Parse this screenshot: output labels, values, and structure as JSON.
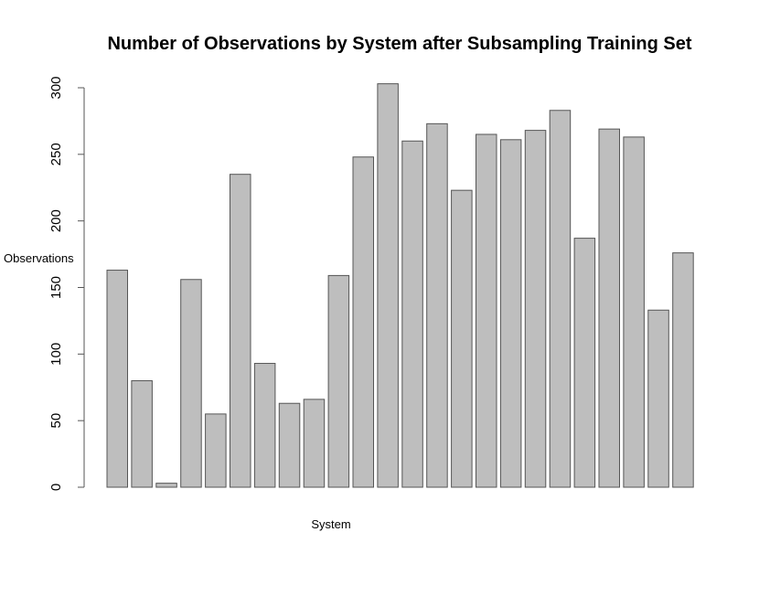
{
  "chart_data": {
    "type": "bar",
    "title": "Number of Observations by System after Subsampling Training Set",
    "x_label": "System",
    "y_label": "Observations",
    "categories": [
      null,
      null,
      null,
      null,
      null,
      null,
      null,
      null,
      null,
      null,
      null,
      null,
      null,
      null,
      null,
      null,
      null,
      null,
      null,
      null,
      null,
      null,
      null,
      null
    ],
    "values": [
      163,
      80,
      3,
      156,
      55,
      235,
      93,
      63,
      66,
      159,
      248,
      303,
      260,
      273,
      223,
      265,
      261,
      268,
      283,
      187,
      269,
      263,
      133,
      176
    ],
    "color": "#bebebe",
    "ylim": [
      0,
      300
    ],
    "yticks": [
      0,
      50,
      100,
      150,
      200,
      250,
      300
    ],
    "grid": false
  }
}
